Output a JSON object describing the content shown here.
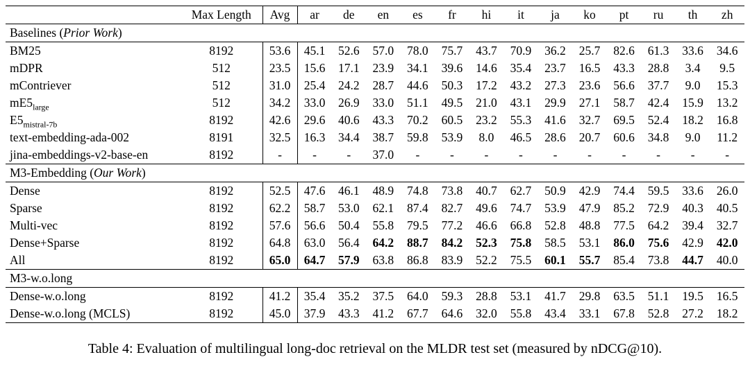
{
  "caption": "Table 4: Evaluation of multilingual long-doc retrieval on the MLDR test set (measured by nDCG@10).",
  "table": {
    "columns": [
      "",
      "Max Length",
      "Avg",
      "ar",
      "de",
      "en",
      "es",
      "fr",
      "hi",
      "it",
      "ja",
      "ko",
      "pt",
      "ru",
      "th",
      "zh"
    ],
    "sections": [
      {
        "title": [
          {
            "text": "Baselines (",
            "italic": false
          },
          {
            "text": "Prior Work",
            "italic": true
          },
          {
            "text": ")",
            "italic": false
          }
        ],
        "rows": [
          {
            "name": "BM25",
            "sub": "",
            "max_length": "8192",
            "values": [
              "53.6",
              "45.1",
              "52.6",
              "57.0",
              "78.0",
              "75.7",
              "43.7",
              "70.9",
              "36.2",
              "25.7",
              "82.6",
              "61.3",
              "33.6",
              "34.6"
            ],
            "bold": []
          },
          {
            "name": "mDPR",
            "sub": "",
            "max_length": "512",
            "values": [
              "23.5",
              "15.6",
              "17.1",
              "23.9",
              "34.1",
              "39.6",
              "14.6",
              "35.4",
              "23.7",
              "16.5",
              "43.3",
              "28.8",
              "3.4",
              "9.5"
            ],
            "bold": []
          },
          {
            "name": "mContriever",
            "sub": "",
            "max_length": "512",
            "values": [
              "31.0",
              "25.4",
              "24.2",
              "28.7",
              "44.6",
              "50.3",
              "17.2",
              "43.2",
              "27.3",
              "23.6",
              "56.6",
              "37.7",
              "9.0",
              "15.3"
            ],
            "bold": []
          },
          {
            "name": "mE5",
            "sub": "large",
            "max_length": "512",
            "values": [
              "34.2",
              "33.0",
              "26.9",
              "33.0",
              "51.1",
              "49.5",
              "21.0",
              "43.1",
              "29.9",
              "27.1",
              "58.7",
              "42.4",
              "15.9",
              "13.2"
            ],
            "bold": []
          },
          {
            "name": "E5",
            "sub": "mistral-7b",
            "max_length": "8192",
            "values": [
              "42.6",
              "29.6",
              "40.6",
              "43.3",
              "70.2",
              "60.5",
              "23.2",
              "55.3",
              "41.6",
              "32.7",
              "69.5",
              "52.4",
              "18.2",
              "16.8"
            ],
            "bold": []
          },
          {
            "name": "text-embedding-ada-002",
            "sub": "",
            "max_length": "8191",
            "values": [
              "32.5",
              "16.3",
              "34.4",
              "38.7",
              "59.8",
              "53.9",
              "8.0",
              "46.5",
              "28.6",
              "20.7",
              "60.6",
              "34.8",
              "9.0",
              "11.2"
            ],
            "bold": []
          },
          {
            "name": "jina-embeddings-v2-base-en",
            "sub": "",
            "max_length": "8192",
            "values": [
              "-",
              "-",
              "-",
              "37.0",
              "-",
              "-",
              "-",
              "-",
              "-",
              "-",
              "-",
              "-",
              "-",
              "-"
            ],
            "bold": []
          }
        ]
      },
      {
        "title": [
          {
            "text": "M3-Embedding (",
            "italic": false
          },
          {
            "text": "Our Work",
            "italic": true
          },
          {
            "text": ")",
            "italic": false
          }
        ],
        "rows": [
          {
            "name": "Dense",
            "sub": "",
            "max_length": "8192",
            "values": [
              "52.5",
              "47.6",
              "46.1",
              "48.9",
              "74.8",
              "73.8",
              "40.7",
              "62.7",
              "50.9",
              "42.9",
              "74.4",
              "59.5",
              "33.6",
              "26.0"
            ],
            "bold": []
          },
          {
            "name": "Sparse",
            "sub": "",
            "max_length": "8192",
            "values": [
              "62.2",
              "58.7",
              "53.0",
              "62.1",
              "87.4",
              "82.7",
              "49.6",
              "74.7",
              "53.9",
              "47.9",
              "85.2",
              "72.9",
              "40.3",
              "40.5"
            ],
            "bold": []
          },
          {
            "name": "Multi-vec",
            "sub": "",
            "max_length": "8192",
            "values": [
              "57.6",
              "56.6",
              "50.4",
              "55.8",
              "79.5",
              "77.2",
              "46.6",
              "66.8",
              "52.8",
              "48.8",
              "77.5",
              "64.2",
              "39.4",
              "32.7"
            ],
            "bold": []
          },
          {
            "name": "Dense+Sparse",
            "sub": "",
            "max_length": "8192",
            "values": [
              "64.8",
              "63.0",
              "56.4",
              "64.2",
              "88.7",
              "84.2",
              "52.3",
              "75.8",
              "58.5",
              "53.1",
              "86.0",
              "75.6",
              "42.9",
              "42.0"
            ],
            "bold": [
              3,
              4,
              5,
              6,
              7,
              10,
              11,
              13
            ]
          },
          {
            "name": "All",
            "sub": "",
            "max_length": "8192",
            "values": [
              "65.0",
              "64.7",
              "57.9",
              "63.8",
              "86.8",
              "83.9",
              "52.2",
              "75.5",
              "60.1",
              "55.7",
              "85.4",
              "73.8",
              "44.7",
              "40.0"
            ],
            "bold": [
              0,
              1,
              2,
              8,
              9,
              12
            ]
          }
        ]
      },
      {
        "title": [
          {
            "text": "M3-w.o.long",
            "italic": false
          }
        ],
        "rows": [
          {
            "name": "Dense-w.o.long",
            "sub": "",
            "max_length": "8192",
            "values": [
              "41.2",
              "35.4",
              "35.2",
              "37.5",
              "64.0",
              "59.3",
              "28.8",
              "53.1",
              "41.7",
              "29.8",
              "63.5",
              "51.1",
              "19.5",
              "16.5"
            ],
            "bold": []
          },
          {
            "name": "Dense-w.o.long (MCLS)",
            "sub": "",
            "max_length": "8192",
            "values": [
              "45.0",
              "37.9",
              "43.3",
              "41.2",
              "67.7",
              "64.6",
              "32.0",
              "55.8",
              "43.4",
              "33.1",
              "67.8",
              "52.8",
              "27.2",
              "18.2"
            ],
            "bold": []
          }
        ]
      }
    ]
  }
}
